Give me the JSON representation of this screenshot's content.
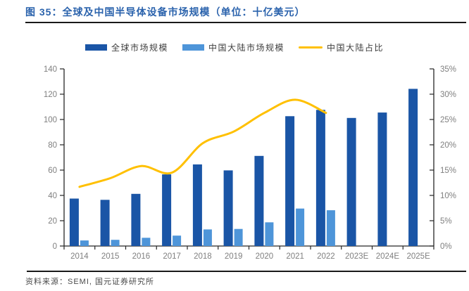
{
  "figure": {
    "title": "图 35：全球及中国半导体设备市场规模（单位：十亿美元）",
    "source": "资料来源：SEMI, 国元证券研究所"
  },
  "colors": {
    "title_blue": "#2A62AC",
    "global_bar": "#1A55A6",
    "china_bar": "#4E95D9",
    "ratio_line": "#FFC000",
    "axis_text": "#7F7F7F",
    "axis_line": "#262626",
    "rule": "#191919",
    "legend_text": "#3D3D3D"
  },
  "chart_data": {
    "type": "bar",
    "subtype": "grouped bars with smoothed line on secondary axis",
    "title": "全球及中国半导体设备市场规模（单位：十亿美元）",
    "categories": [
      "2014",
      "2015",
      "2016",
      "2017",
      "2018",
      "2019",
      "2020",
      "2021",
      "2022",
      "2023E",
      "2024E",
      "2025E"
    ],
    "series": [
      {
        "name": "全球市场规模",
        "type": "bar",
        "axis": "left",
        "unit": "十亿美元",
        "values": [
          37.5,
          36.5,
          41.2,
          56.6,
          64.5,
          59.8,
          71.2,
          102.6,
          107.6,
          101.2,
          105.5,
          124.2
        ]
      },
      {
        "name": "中国大陆市场规模",
        "type": "bar",
        "axis": "left",
        "unit": "十亿美元",
        "values": [
          4.4,
          4.9,
          6.5,
          8.2,
          13.1,
          13.5,
          18.7,
          29.6,
          28.3,
          null,
          null,
          null
        ]
      },
      {
        "name": "中国大陆占比",
        "type": "line",
        "axis": "right",
        "unit": "%",
        "smooth": true,
        "values": [
          11.7,
          13.4,
          15.8,
          14.5,
          20.3,
          22.6,
          26.3,
          28.9,
          26.3,
          null,
          null,
          null
        ]
      }
    ],
    "left_axis": {
      "min": 0,
      "max": 140,
      "step": 20,
      "tick_labels": [
        "0",
        "20",
        "40",
        "60",
        "80",
        "100",
        "120",
        "140"
      ]
    },
    "right_axis": {
      "min": 0,
      "max": 35,
      "step": 5,
      "tick_labels": [
        "0%",
        "5%",
        "10%",
        "15%",
        "20%",
        "25%",
        "30%",
        "35%"
      ]
    },
    "grid": false,
    "legend_position": "top-center"
  }
}
